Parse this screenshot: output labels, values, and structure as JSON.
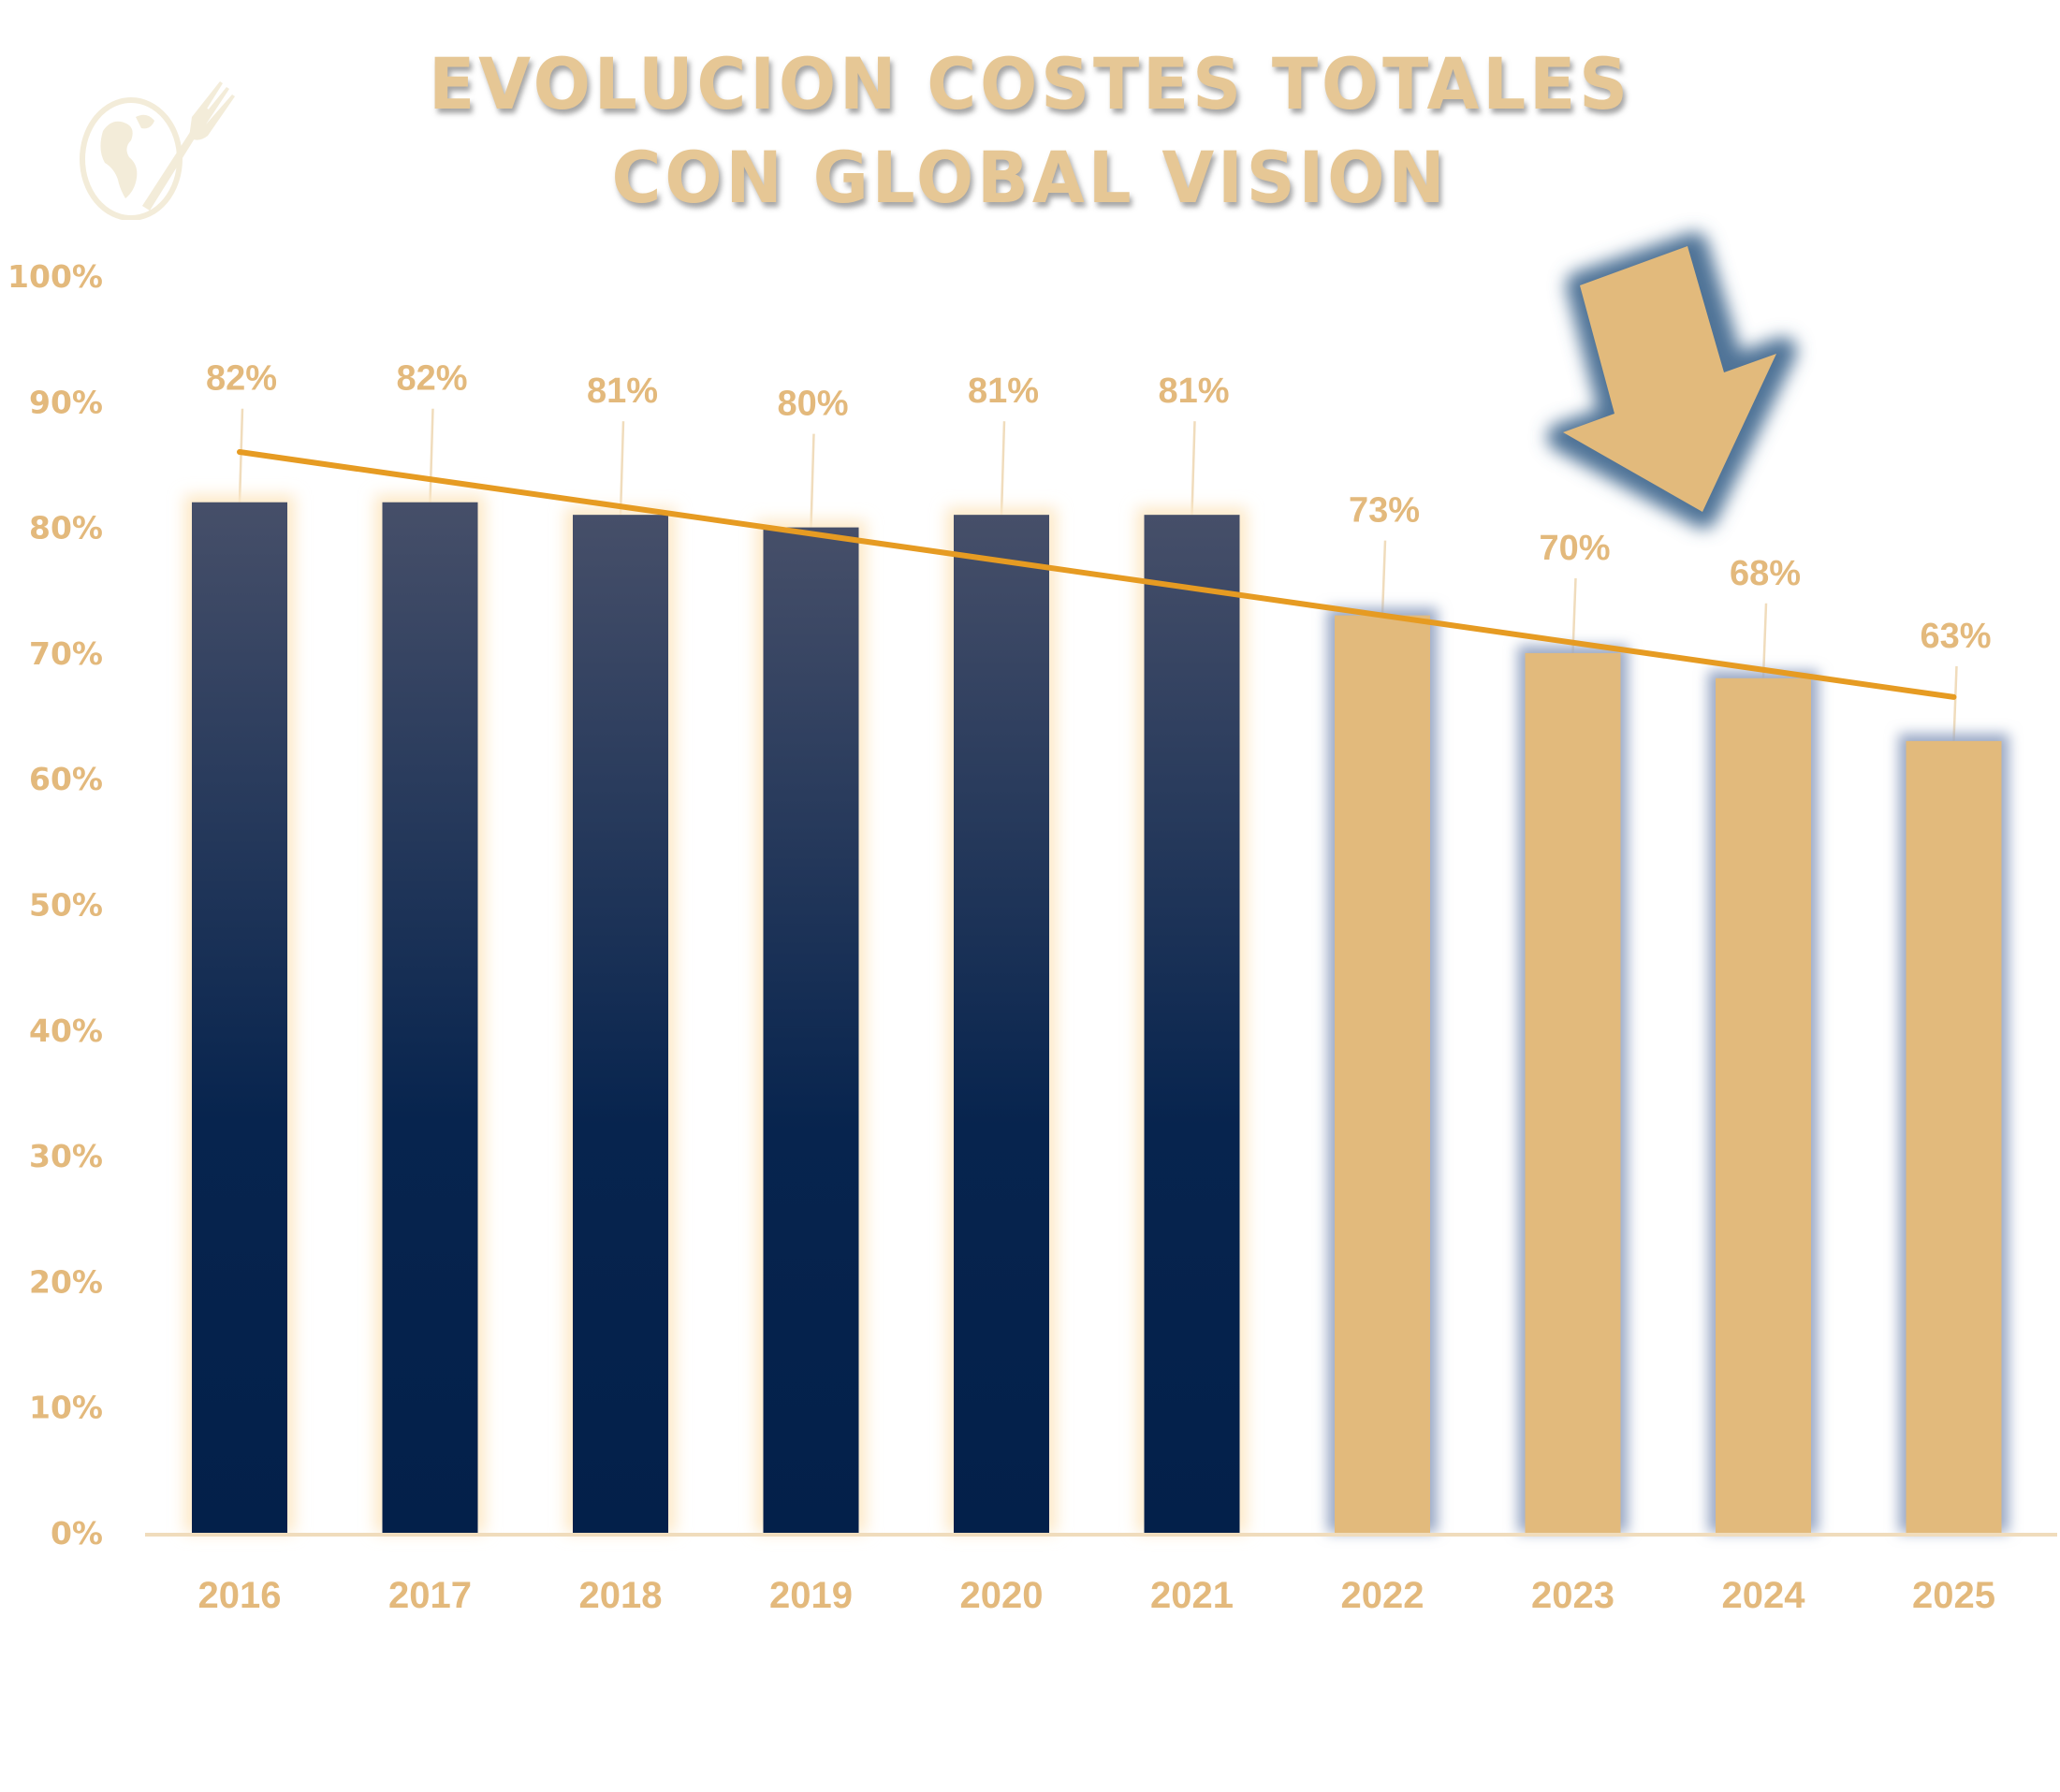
{
  "logo": {
    "icon": "globe-fork-icon"
  },
  "chart_data": {
    "type": "bar",
    "title": "EVOLUCION COSTES TOTALES CON GLOBAL VISION",
    "title_lines": [
      "EVOLUCION COSTES TOTALES",
      "CON GLOBAL VISION"
    ],
    "xlabel": "",
    "ylabel": "",
    "categories": [
      "2016",
      "2017",
      "2018",
      "2019",
      "2020",
      "2021",
      "2022",
      "2023",
      "2024",
      "2025"
    ],
    "values": [
      82,
      82,
      81,
      80,
      81,
      81,
      73,
      70,
      68,
      63
    ],
    "data_labels": [
      "82%",
      "82%",
      "81%",
      "80%",
      "81%",
      "81%",
      "73%",
      "70%",
      "68%",
      "63%"
    ],
    "ylim": [
      0,
      100
    ],
    "y_ticks": [
      0,
      10,
      20,
      30,
      40,
      50,
      60,
      70,
      80,
      90,
      100
    ],
    "y_tick_labels": [
      "0%",
      "10%",
      "20%",
      "30%",
      "40%",
      "50%",
      "60%",
      "70%",
      "80%",
      "90%",
      "100%"
    ],
    "grid": false,
    "legend": "none",
    "trendline": {
      "type": "linear",
      "start": 86,
      "end": 66.5
    },
    "annotation": {
      "icon": "down-arrow-icon",
      "meaning": "decreasing trend"
    },
    "colors": {
      "historic_bar_top": "#464f69",
      "historic_bar_bottom": "#03204a",
      "projected_bar": "#e2ba7c",
      "projected_glow": "#9aa9c6",
      "historic_glow": "#fde9c8",
      "trendline": "#e69b22",
      "text": "#e3b97c",
      "axis": "#f0dcbc",
      "arrow_fill": "#e2ba7c",
      "arrow_glow": "#4f7397"
    },
    "projected_from_index": 6
  }
}
